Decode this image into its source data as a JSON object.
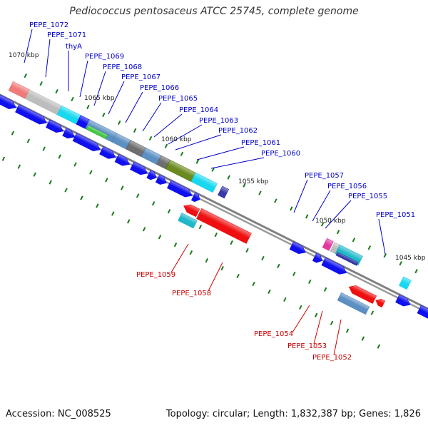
{
  "title": "Pediococcus pentosaceus ATCC 25745, complete genome",
  "footer": {
    "accession": "Accession: NC_008525",
    "summary": "Topology: circular; Length: 1,832,387 bp; Genes: 1,826"
  },
  "colors": {
    "forward_label": "#0000cc",
    "reverse_label": "#cc0000",
    "leader": "#0000cc",
    "reverse_leader": "#cc0000",
    "tick": "#1a7a1a",
    "backbone": "#7f7f7f",
    "cds_blue": "#0000ee",
    "cds_red": "#ee0000"
  },
  "scale_labels": [
    "1070 kbp",
    "1065 kbp",
    "1060 kbp",
    "1055 kbp",
    "1050 kbp",
    "1045 kbp"
  ],
  "forward_genes": [
    "PEPE_1072",
    "PEPE_1071",
    "thyA",
    "PEPE_1069",
    "PEPE_1068",
    "PEPE_1067",
    "PEPE_1066",
    "PEPE_1065",
    "PEPE_1064",
    "PEPE_1063",
    "PEPE_1062",
    "PEPE_1061",
    "PEPE_1060",
    "PEPE_1057",
    "PEPE_1056",
    "PEPE_1055",
    "PEPE_1051"
  ],
  "reverse_genes": [
    "PEPE_1059",
    "PEPE_1058",
    "PEPE_1054",
    "PEPE_1053",
    "PEPE_1052"
  ]
}
